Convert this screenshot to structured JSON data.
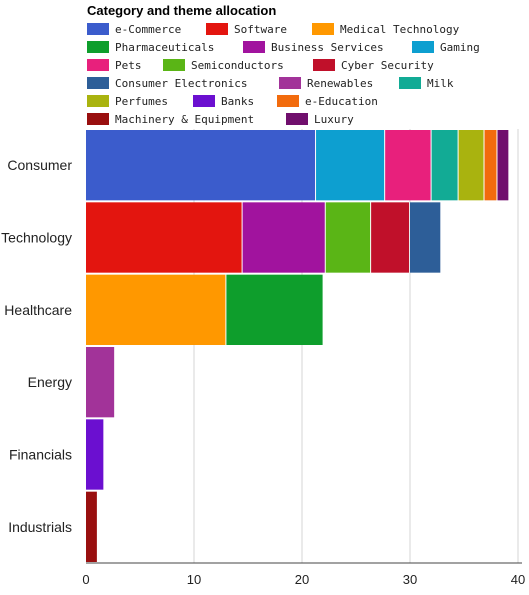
{
  "chart_data": {
    "type": "bar",
    "orientation": "horizontal",
    "stacked": true,
    "title": "Category and theme allocation",
    "categories": [
      "Consumer",
      "Technology",
      "Healthcare",
      "Energy",
      "Financials",
      "Industrials"
    ],
    "series": [
      {
        "name": "e-Commerce",
        "color": "#3b5ccc",
        "values": [
          21.3,
          0,
          0,
          0,
          0,
          0
        ]
      },
      {
        "name": "Software",
        "color": "#e3150f",
        "values": [
          0,
          14.5,
          0,
          0,
          0,
          0
        ]
      },
      {
        "name": "Medical Technology",
        "color": "#ff9800",
        "values": [
          0,
          0,
          13,
          0,
          0,
          0
        ]
      },
      {
        "name": "Pharmaceuticals",
        "color": "#0e9e2c",
        "values": [
          0,
          0,
          9,
          0,
          0,
          0
        ]
      },
      {
        "name": "Business Services",
        "color": "#a1139e",
        "values": [
          0,
          7.7,
          0,
          0,
          0,
          0
        ]
      },
      {
        "name": "Gaming",
        "color": "#0d9fd0",
        "values": [
          6.4,
          0,
          0,
          0,
          0,
          0
        ]
      },
      {
        "name": "Pets",
        "color": "#e8207c",
        "values": [
          4.3,
          0,
          0,
          0,
          0,
          0
        ]
      },
      {
        "name": "Semiconductors",
        "color": "#5ab516",
        "values": [
          0,
          4.2,
          0,
          0,
          0,
          0
        ]
      },
      {
        "name": "Cyber Security",
        "color": "#c0102a",
        "values": [
          0,
          3.6,
          0,
          0,
          0,
          0
        ]
      },
      {
        "name": "Consumer Electronics",
        "color": "#2d5e98",
        "values": [
          0,
          2.9,
          0,
          0,
          0,
          0
        ]
      },
      {
        "name": "Renewables",
        "color": "#a23399",
        "values": [
          0,
          0,
          0,
          2.7,
          0,
          0
        ]
      },
      {
        "name": "Milk",
        "color": "#12ab95",
        "values": [
          2.5,
          0,
          0,
          0,
          0,
          0
        ]
      },
      {
        "name": "Perfumes",
        "color": "#a9b30f",
        "values": [
          2.4,
          0,
          0,
          0,
          0,
          0
        ]
      },
      {
        "name": "Banks",
        "color": "#6b0fd0",
        "values": [
          0,
          0,
          0,
          0,
          1.7,
          0
        ]
      },
      {
        "name": "e-Education",
        "color": "#f26b0d",
        "values": [
          1.2,
          0,
          0,
          0,
          0,
          0
        ]
      },
      {
        "name": "Machinery & Equipment",
        "color": "#990f0f",
        "values": [
          0,
          0,
          0,
          0,
          0,
          1.1
        ]
      },
      {
        "name": "Luxury",
        "color": "#700f6d",
        "values": [
          1.1,
          0,
          0,
          0,
          0,
          0
        ]
      }
    ],
    "stack_order": {
      "Consumer": [
        "e-Commerce",
        "Gaming",
        "Pets",
        "Milk",
        "Perfumes",
        "e-Education",
        "Luxury"
      ],
      "Technology": [
        "Software",
        "Business Services",
        "Semiconductors",
        "Cyber Security",
        "Consumer Electronics"
      ],
      "Healthcare": [
        "Medical Technology",
        "Pharmaceuticals"
      ],
      "Energy": [
        "Renewables"
      ],
      "Financials": [
        "Banks"
      ],
      "Industrials": [
        "Machinery & Equipment"
      ]
    },
    "xlim": [
      0,
      40
    ],
    "xticks": [
      0,
      10,
      20,
      30,
      40
    ],
    "grid": true,
    "legend_position": "top"
  }
}
